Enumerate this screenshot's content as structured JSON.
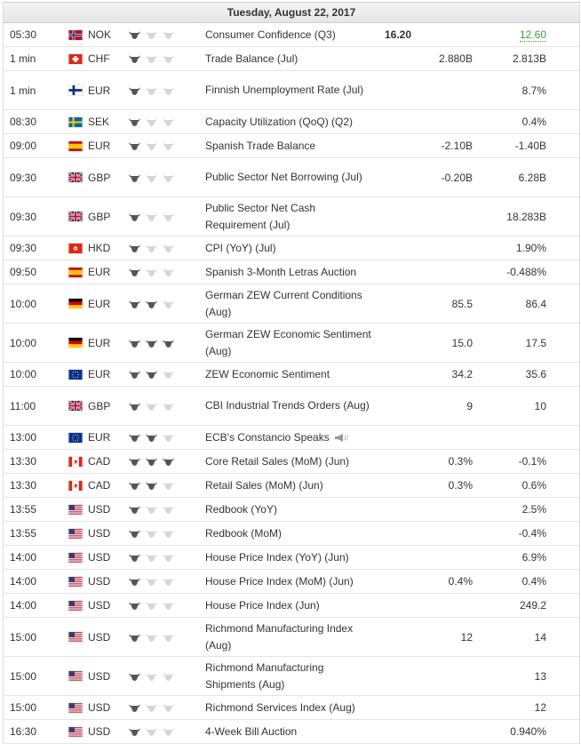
{
  "date_header": "Tuesday, August 22, 2017",
  "colors": {
    "bull_active": "#555555",
    "bull_inactive": "#d6d6d6",
    "better_than_expected": "#3c9c3c"
  },
  "rows": [
    {
      "time": "05:30",
      "flag": "NO",
      "currency": "NOK",
      "importance": 1,
      "event": "Consumer Confidence (Q3)",
      "actual": "16.20",
      "forecast": "",
      "previous": "12.60",
      "previous_color": "green",
      "height": 26
    },
    {
      "time": "1 min",
      "flag": "CH",
      "currency": "CHF",
      "importance": 1,
      "event": "Trade Balance (Jul)",
      "actual": "",
      "forecast": "2.880B",
      "previous": "2.813B",
      "height": 26
    },
    {
      "time": "1 min",
      "flag": "FI",
      "currency": "EUR",
      "importance": 1,
      "event": "Finnish Unemployment Rate (Jul)",
      "actual": "",
      "forecast": "",
      "previous": "8.7%",
      "height": 43
    },
    {
      "time": "08:30",
      "flag": "SE",
      "currency": "SEK",
      "importance": 1,
      "event": "Capacity Utilization (QoQ) (Q2)",
      "actual": "",
      "forecast": "",
      "previous": "0.4%",
      "height": 26
    },
    {
      "time": "09:00",
      "flag": "ES",
      "currency": "EUR",
      "importance": 1,
      "event": "Spanish Trade Balance",
      "actual": "",
      "forecast": "-2.10B",
      "previous": "-1.40B",
      "height": 26
    },
    {
      "time": "09:30",
      "flag": "GB",
      "currency": "GBP",
      "importance": 1,
      "event": "Public Sector Net Borrowing (Jul)",
      "actual": "",
      "forecast": "-0.20B",
      "previous": "6.28B",
      "height": 43
    },
    {
      "time": "09:30",
      "flag": "GB",
      "currency": "GBP",
      "importance": 1,
      "event": "Public Sector Net Cash Requirement (Jul)",
      "actual": "",
      "forecast": "",
      "previous": "18.283B",
      "height": 43
    },
    {
      "time": "09:30",
      "flag": "HK",
      "currency": "HKD",
      "importance": 1,
      "event": "CPI (YoY) (Jul)",
      "actual": "",
      "forecast": "",
      "previous": "1.90%",
      "height": 26
    },
    {
      "time": "09:50",
      "flag": "ES",
      "currency": "EUR",
      "importance": 1,
      "event": "Spanish 3-Month Letras Auction",
      "actual": "",
      "forecast": "",
      "previous": "-0.488%",
      "height": 26
    },
    {
      "time": "10:00",
      "flag": "DE",
      "currency": "EUR",
      "importance": 2,
      "event": "German ZEW Current Conditions (Aug)",
      "actual": "",
      "forecast": "85.5",
      "previous": "86.4",
      "height": 43
    },
    {
      "time": "10:00",
      "flag": "DE",
      "currency": "EUR",
      "importance": 3,
      "event": "German ZEW Economic Sentiment (Aug)",
      "actual": "",
      "forecast": "15.0",
      "previous": "17.5",
      "height": 43
    },
    {
      "time": "10:00",
      "flag": "EU",
      "currency": "EUR",
      "importance": 2,
      "event": "ZEW Economic Sentiment",
      "actual": "",
      "forecast": "34.2",
      "previous": "35.6",
      "height": 26
    },
    {
      "time": "11:00",
      "flag": "GB",
      "currency": "GBP",
      "importance": 1,
      "event": "CBI Industrial Trends Orders (Aug)",
      "actual": "",
      "forecast": "9",
      "previous": "10",
      "height": 43
    },
    {
      "time": "13:00",
      "flag": "EU",
      "currency": "EUR",
      "importance": 2,
      "event": "ECB's Constancio Speaks",
      "speech": true,
      "actual": "",
      "forecast": "",
      "previous": "",
      "height": 26
    },
    {
      "time": "13:30",
      "flag": "CA",
      "currency": "CAD",
      "importance": 3,
      "event": "Core Retail Sales (MoM) (Jun)",
      "actual": "",
      "forecast": "0.3%",
      "previous": "-0.1%",
      "height": 26
    },
    {
      "time": "13:30",
      "flag": "CA",
      "currency": "CAD",
      "importance": 2,
      "event": "Retail Sales (MoM) (Jun)",
      "actual": "",
      "forecast": "0.3%",
      "previous": "0.6%",
      "height": 26
    },
    {
      "time": "13:55",
      "flag": "US",
      "currency": "USD",
      "importance": 1,
      "event": "Redbook (YoY)",
      "actual": "",
      "forecast": "",
      "previous": "2.5%",
      "height": 26
    },
    {
      "time": "13:55",
      "flag": "US",
      "currency": "USD",
      "importance": 1,
      "event": "Redbook (MoM)",
      "actual": "",
      "forecast": "",
      "previous": "-0.4%",
      "height": 26
    },
    {
      "time": "14:00",
      "flag": "US",
      "currency": "USD",
      "importance": 1,
      "event": "House Price Index (YoY) (Jun)",
      "actual": "",
      "forecast": "",
      "previous": "6.9%",
      "height": 26
    },
    {
      "time": "14:00",
      "flag": "US",
      "currency": "USD",
      "importance": 1,
      "event": "House Price Index (MoM) (Jun)",
      "actual": "",
      "forecast": "0.4%",
      "previous": "0.4%",
      "height": 26
    },
    {
      "time": "14:00",
      "flag": "US",
      "currency": "USD",
      "importance": 1,
      "event": "House Price Index (Jun)",
      "actual": "",
      "forecast": "",
      "previous": "249.2",
      "height": 26
    },
    {
      "time": "15:00",
      "flag": "US",
      "currency": "USD",
      "importance": 1,
      "event": "Richmond Manufacturing Index (Aug)",
      "actual": "",
      "forecast": "12",
      "previous": "14",
      "height": 43
    },
    {
      "time": "15:00",
      "flag": "US",
      "currency": "USD",
      "importance": 1,
      "event": "Richmond Manufacturing Shipments (Aug)",
      "actual": "",
      "forecast": "",
      "previous": "13",
      "height": 43
    },
    {
      "time": "15:00",
      "flag": "US",
      "currency": "USD",
      "importance": 1,
      "event": "Richmond Services Index (Aug)",
      "actual": "",
      "forecast": "",
      "previous": "12",
      "height": 26
    },
    {
      "time": "16:30",
      "flag": "US",
      "currency": "USD",
      "importance": 1,
      "event": "4-Week Bill Auction",
      "actual": "",
      "forecast": "",
      "previous": "0.940%",
      "height": 26
    }
  ]
}
